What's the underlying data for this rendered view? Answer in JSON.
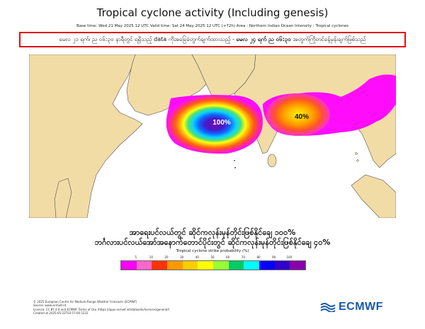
{
  "title": "Tropical cyclone activity (Including genesis)",
  "subtitle": "Base time: Wed 21 May 2025 12 UTC  Valid time: Sat 24 May 2025 12 UTC (+72h)  Area : Northern Indian Ocean  Intensity : Tropical cyclones",
  "notice": {
    "part1": "မေလ ၂၁ ရက်၊ ည ၀၆:၃၀ နာရီတွင် ရရှိသည့် data ကိုအခြေခံတွက်ချက်ထားသည့် - ",
    "part2_bold": "မေလ ၂၄ ရက် ည ၀၆:၃၀",
    "part3": " အတွက်ကြိုတင်ခန့်မှန်းချက်ဖြစ်သည်"
  },
  "summary": {
    "line1": "အာရေးပင်လယ်တွင် ဆိုင်ကလုန်းမုန်တိုင်းဖြစ်နိုင်ချေ ၁၀၀%",
    "line2": "ဘင်္ဂလားပင်လယ်အော်အနောက်တောင်ပိုင်းတွင် ဆိုင်ကလုန်းမုန်တိုင်းဖြစ်နိုင်ချေ ၄၀%"
  },
  "map_labels": {
    "arabian_sea": "100%",
    "bay_of_bengal": "40%"
  },
  "legend": {
    "title": "Tropical cyclone strike probability (%)",
    "ticks": [
      "5",
      "10",
      "20",
      "30",
      "40",
      "50",
      "60",
      "70",
      "80",
      "90",
      "100"
    ],
    "colors": [
      "#ff00ff",
      "#ff66cc",
      "#ff3300",
      "#ff9900",
      "#ffcc00",
      "#ffff00",
      "#99ff33",
      "#00cc66",
      "#00ffff",
      "#0000ff",
      "#3300cc",
      "#8800aa"
    ]
  },
  "credits": [
    "© 2025 European Centre for Medium-Range Weather Forecasts (ECMWF)",
    "Source: www.ecmwf.int",
    "Licence: CC BY 4.0 and ECMWF Terms of Use (https://apps.ecmwf.int/datasets/licences/general/)",
    "Created at 2025-05-22T03:57:00.5232"
  ],
  "logo_text": "ECMWF",
  "colors": {
    "land": "#f2dca6",
    "sea": "#ffffff",
    "border": "#555555",
    "notice_border": "#dd1111",
    "logo_blue": "#1a5aa8"
  }
}
